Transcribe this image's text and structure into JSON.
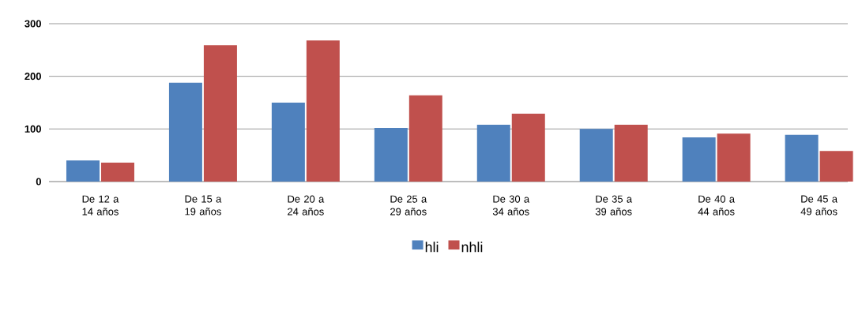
{
  "chart_data": {
    "type": "bar",
    "categories": [
      "De 12 a 14 años",
      "De 15 a 19 años",
      "De 20 a 24 años",
      "De 25 a 29 años",
      "De 30 a 34 años",
      "De 35 a 39 años",
      "De 40 a 44 años",
      "De 45 a 49 años"
    ],
    "series": [
      {
        "name": "hli",
        "color": "#4f81bd",
        "values": [
          40,
          188,
          150,
          102,
          108,
          100,
          84,
          89
        ]
      },
      {
        "name": "nhli",
        "color": "#c0504d",
        "values": [
          36,
          259,
          268,
          164,
          129,
          108,
          91,
          58
        ]
      }
    ],
    "ylim": [
      0,
      300
    ],
    "yticks": [
      0,
      100,
      200,
      300
    ],
    "grid": "y",
    "legend": "bottom"
  }
}
